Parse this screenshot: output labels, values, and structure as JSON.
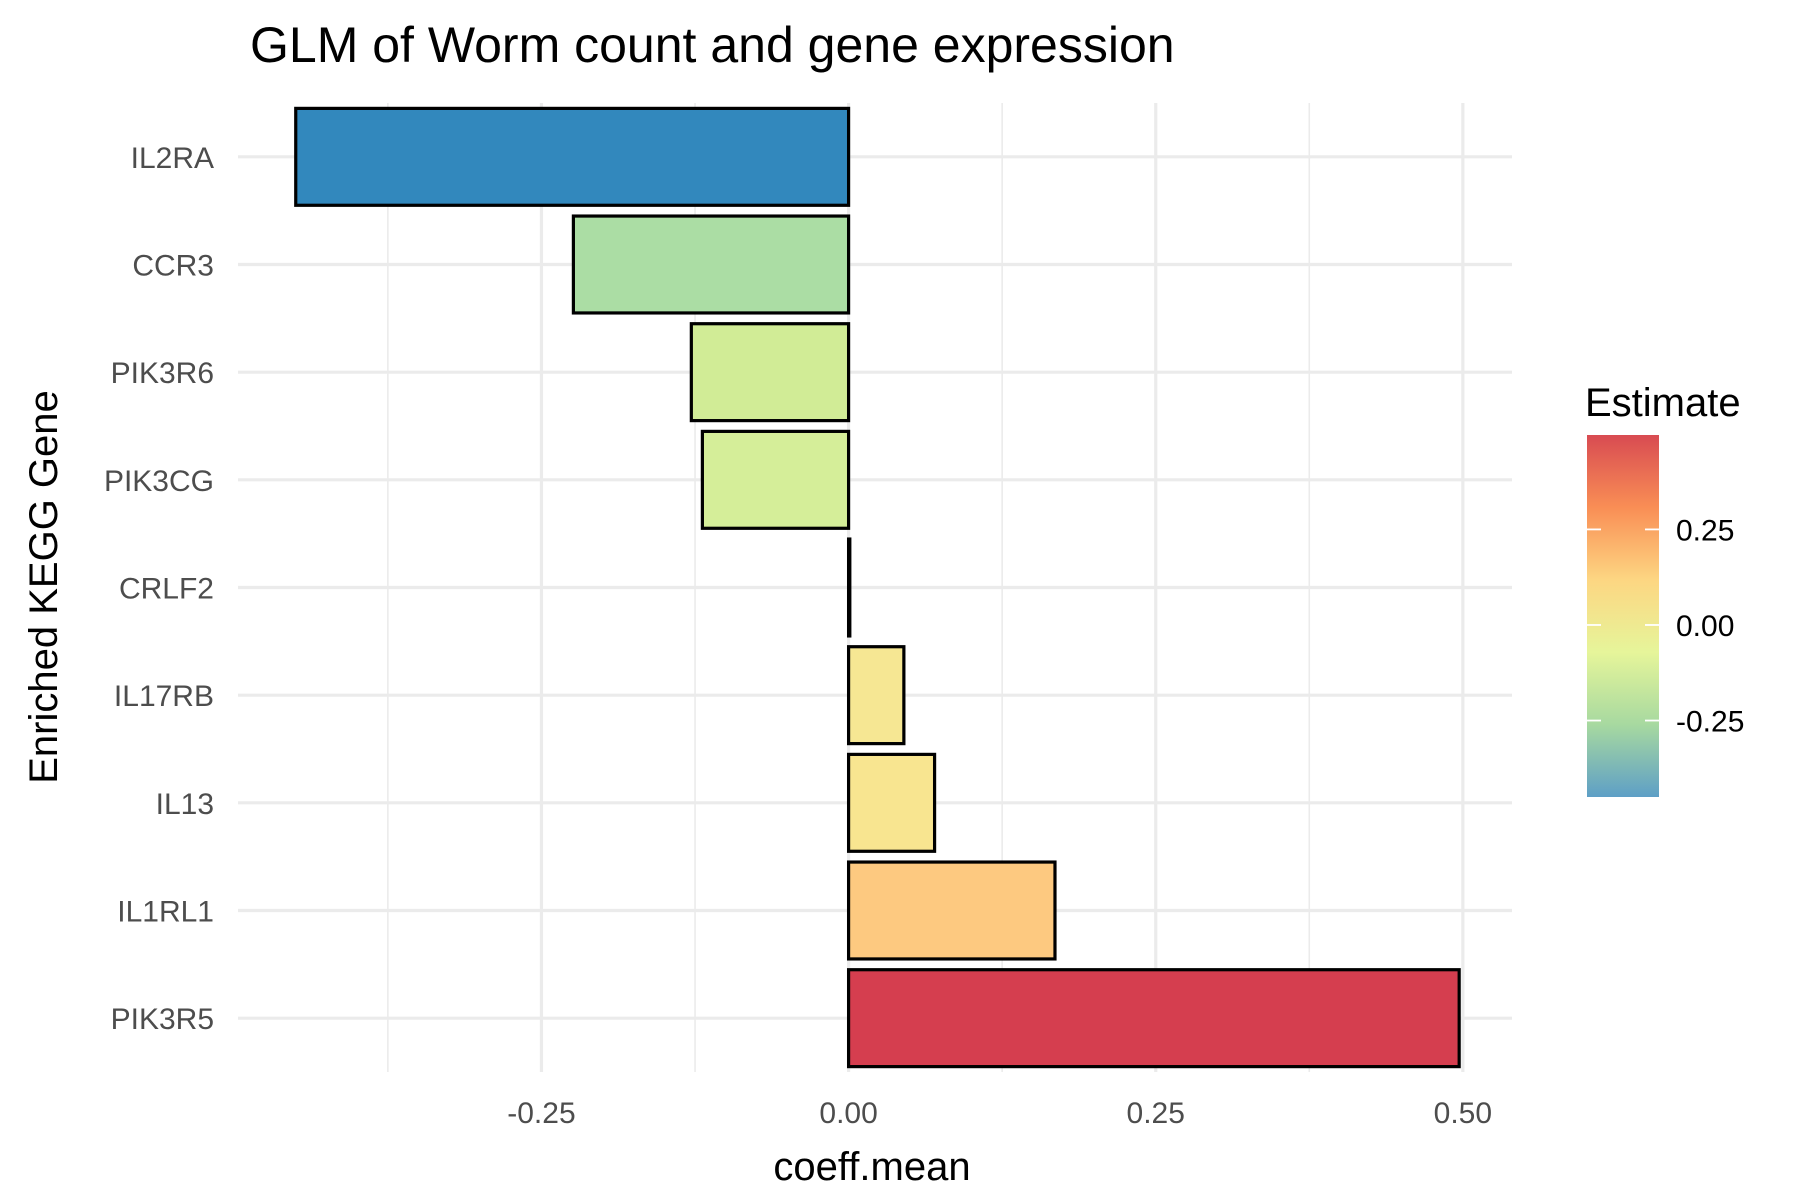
{
  "chart_data": {
    "type": "bar",
    "orientation": "horizontal",
    "title": "GLM of Worm count and gene expression",
    "xlabel": "coeff.mean",
    "ylabel": "Enriched KEGG Gene",
    "categories": [
      "IL2RA",
      "CCR3",
      "PIK3R6",
      "PIK3CG",
      "CRLF2",
      "IL17RB",
      "IL13",
      "IL1RL1",
      "PIK3R5"
    ],
    "values": [
      -0.45,
      -0.224,
      -0.128,
      -0.119,
      0.001,
      0.045,
      0.07,
      0.168,
      0.497
    ],
    "colors": [
      "#3288bd",
      "#abdda4",
      "#d1ec96",
      "#d5ee99",
      "#f2e795",
      "#f6e793",
      "#f8e590",
      "#fdc980",
      "#d53e4f"
    ],
    "xlim": [
      -0.497,
      0.54
    ],
    "xticks": [
      -0.25,
      0.0,
      0.25,
      0.5
    ],
    "xtick_labels": [
      "-0.25",
      "0.00",
      "0.25",
      "0.50"
    ],
    "grid": true,
    "legend": {
      "title": "Estimate",
      "placement": "right",
      "ticks": [
        0.25,
        0.0,
        -0.25
      ],
      "labels": [
        "0.25",
        "0.00",
        "-0.25"
      ],
      "range": [
        -0.45,
        0.497
      ],
      "gradient": [
        "#5e9fc6",
        "#a7d9a0",
        "#e6f59a",
        "#fdd682",
        "#f98e55",
        "#d84b52"
      ]
    }
  }
}
